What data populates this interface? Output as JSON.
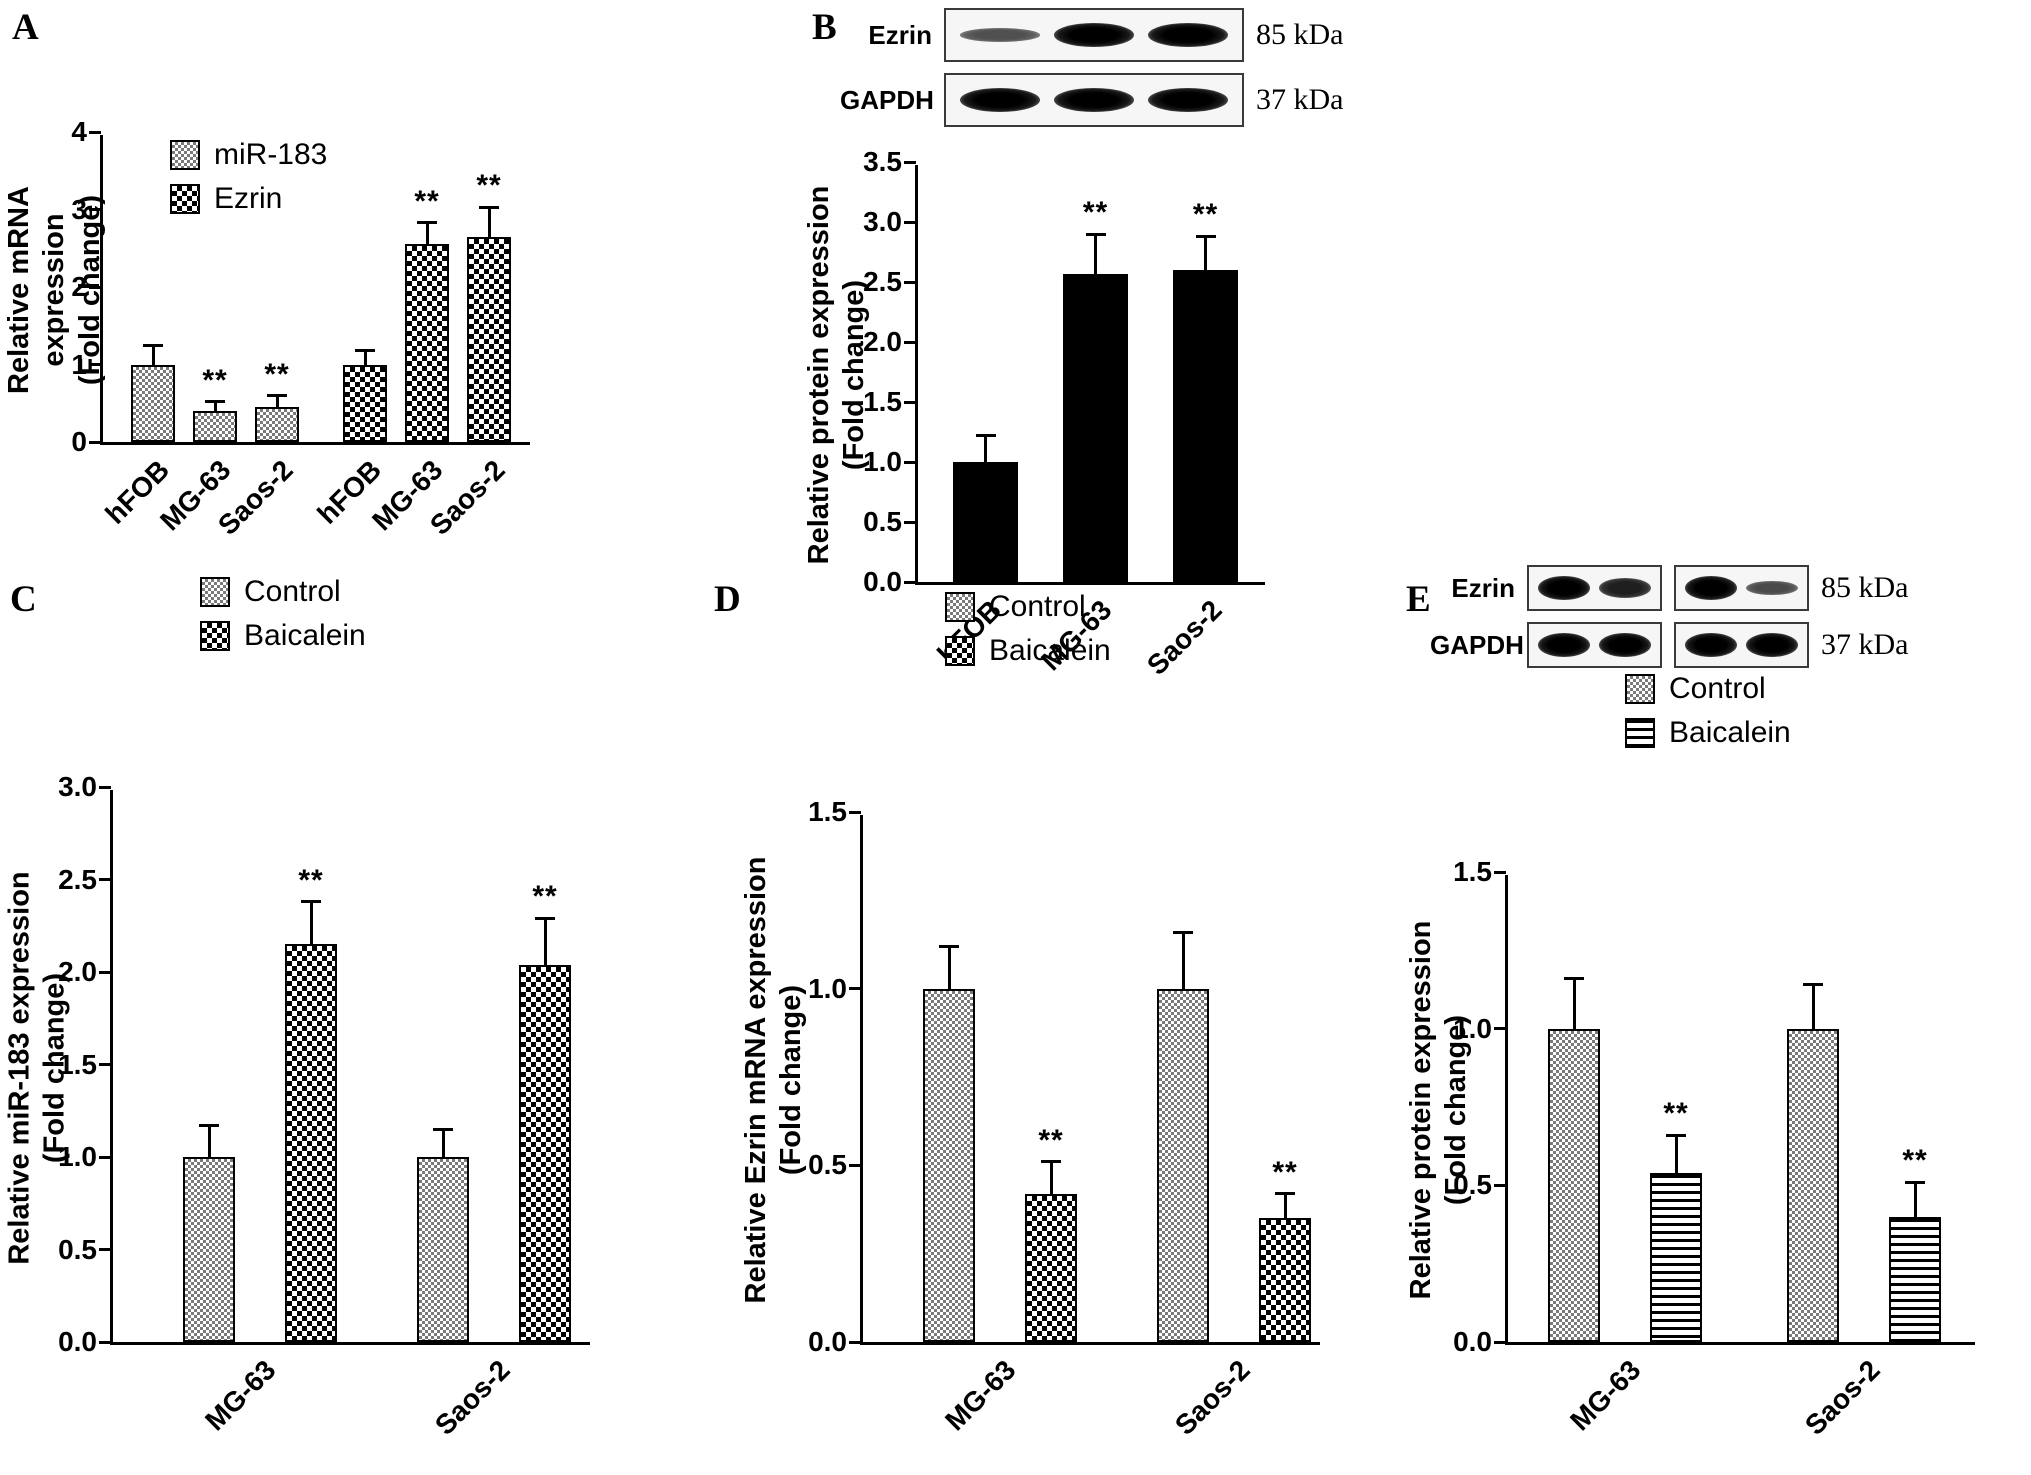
{
  "figure_bg": "#ffffff",
  "panels": {
    "a": {
      "label": "A"
    },
    "b": {
      "label": "B",
      "blot": {
        "rows": [
          {
            "label": "Ezrin",
            "kda": "85 kDa",
            "boxes": [
              [
                0.35,
                1,
                1
              ]
            ]
          },
          {
            "label": "GAPDH",
            "kda": "37 kDa",
            "boxes": [
              [
                1,
                1,
                1
              ]
            ]
          }
        ]
      }
    },
    "c": {
      "label": "C"
    },
    "d": {
      "label": "D"
    },
    "e": {
      "label": "E",
      "blot": {
        "rows": [
          {
            "label": "Ezrin",
            "kda": "85 kDa",
            "boxes": [
              [
                1,
                0.75
              ],
              [
                1,
                0.4
              ]
            ]
          },
          {
            "label": "GAPDH",
            "kda": "37 kDa",
            "boxes": [
              [
                1,
                1
              ],
              [
                1,
                1
              ]
            ]
          }
        ]
      }
    }
  },
  "chart_data": [
    {
      "id": "panel-a",
      "type": "bar",
      "ylabel": [
        "Relative mRNA expression",
        "(Fold change)"
      ],
      "xlabel": "",
      "ylim": [
        0,
        4
      ],
      "yticks": [
        0,
        1,
        2,
        3,
        4
      ],
      "ytick_labels": [
        "0",
        "1",
        "2",
        "3",
        "4"
      ],
      "legend": [
        {
          "label": "miR-183",
          "pattern": "fine"
        },
        {
          "label": "Ezrin",
          "pattern": "coarse"
        }
      ],
      "groups": [
        {
          "category": "hFOB",
          "bars": [
            {
              "series": "miR-183",
              "value": 1.0,
              "err": 0.25,
              "sig": "",
              "pattern": "fine"
            }
          ]
        },
        {
          "category": "MG-63",
          "bars": [
            {
              "series": "miR-183",
              "value": 0.4,
              "err": 0.12,
              "sig": "**",
              "pattern": "fine"
            }
          ]
        },
        {
          "category": "Saos-2",
          "bars": [
            {
              "series": "miR-183",
              "value": 0.45,
              "err": 0.15,
              "sig": "**",
              "pattern": "fine"
            }
          ]
        },
        {
          "category": "hFOB",
          "spacer": true,
          "bars": [
            {
              "series": "Ezrin",
              "value": 1.0,
              "err": 0.18,
              "sig": "",
              "pattern": "coarse"
            }
          ]
        },
        {
          "category": "MG-63",
          "bars": [
            {
              "series": "Ezrin",
              "value": 2.55,
              "err": 0.28,
              "sig": "**",
              "pattern": "coarse"
            }
          ]
        },
        {
          "category": "Saos-2",
          "bars": [
            {
              "series": "Ezrin",
              "value": 2.65,
              "err": 0.38,
              "sig": "**",
              "pattern": "coarse"
            }
          ]
        }
      ]
    },
    {
      "id": "panel-b",
      "type": "bar",
      "ylabel": [
        "Relative protein expression",
        "(Fold change)"
      ],
      "xlabel": "",
      "ylim": [
        0,
        3.5
      ],
      "yticks": [
        0,
        0.5,
        1,
        1.5,
        2,
        2.5,
        3,
        3.5
      ],
      "ytick_labels": [
        "0.0",
        "0.5",
        "1.0",
        "1.5",
        "2.0",
        "2.5",
        "3.0",
        "3.5"
      ],
      "groups": [
        {
          "category": "hFOB",
          "bars": [
            {
              "value": 1.0,
              "err": 0.22,
              "sig": "",
              "pattern": "solid"
            }
          ]
        },
        {
          "category": "MG-63",
          "bars": [
            {
              "value": 2.57,
              "err": 0.33,
              "sig": "**",
              "pattern": "solid"
            }
          ]
        },
        {
          "category": "Saos-2",
          "bars": [
            {
              "value": 2.6,
              "err": 0.28,
              "sig": "**",
              "pattern": "solid"
            }
          ]
        }
      ]
    },
    {
      "id": "panel-c",
      "type": "bar",
      "ylabel": [
        "Relative miR-183 expression",
        "(Fold change)"
      ],
      "xlabel": "",
      "ylim": [
        0,
        3
      ],
      "yticks": [
        0,
        0.5,
        1,
        1.5,
        2,
        2.5,
        3
      ],
      "ytick_labels": [
        "0.0",
        "0.5",
        "1.0",
        "1.5",
        "2.0",
        "2.5",
        "3.0"
      ],
      "legend": [
        {
          "label": "Control",
          "pattern": "fine"
        },
        {
          "label": "Baicalein",
          "pattern": "coarse"
        }
      ],
      "groups": [
        {
          "category": "MG-63",
          "bars": [
            {
              "series": "Control",
              "value": 1.0,
              "err": 0.17,
              "sig": "",
              "pattern": "fine"
            },
            {
              "series": "Baicalein",
              "value": 2.15,
              "err": 0.23,
              "sig": "**",
              "pattern": "coarse"
            }
          ]
        },
        {
          "category": "Saos-2",
          "bars": [
            {
              "series": "Control",
              "value": 1.0,
              "err": 0.15,
              "sig": "",
              "pattern": "fine"
            },
            {
              "series": "Baicalein",
              "value": 2.04,
              "err": 0.25,
              "sig": "**",
              "pattern": "coarse"
            }
          ]
        }
      ]
    },
    {
      "id": "panel-d",
      "type": "bar",
      "ylabel": [
        "Relative Ezrin mRNA expression",
        "(Fold change)"
      ],
      "xlabel": "",
      "ylim": [
        0,
        1.5
      ],
      "yticks": [
        0,
        0.5,
        1,
        1.5
      ],
      "ytick_labels": [
        "0.0",
        "0.5",
        "1.0",
        "1.5"
      ],
      "legend": [
        {
          "label": "Control",
          "pattern": "fine"
        },
        {
          "label": "Baicalein",
          "pattern": "coarse"
        }
      ],
      "groups": [
        {
          "category": "MG-63",
          "bars": [
            {
              "series": "Control",
              "value": 1.0,
              "err": 0.12,
              "sig": "",
              "pattern": "fine"
            },
            {
              "series": "Baicalein",
              "value": 0.42,
              "err": 0.09,
              "sig": "**",
              "pattern": "coarse"
            }
          ]
        },
        {
          "category": "Saos-2",
          "bars": [
            {
              "series": "Control",
              "value": 1.0,
              "err": 0.16,
              "sig": "",
              "pattern": "fine"
            },
            {
              "series": "Baicalein",
              "value": 0.35,
              "err": 0.07,
              "sig": "**",
              "pattern": "coarse"
            }
          ]
        }
      ]
    },
    {
      "id": "panel-e",
      "type": "bar",
      "ylabel": [
        "Relative protein expression",
        "(Fold change)"
      ],
      "xlabel": "",
      "ylim": [
        0,
        1.5
      ],
      "yticks": [
        0,
        0.5,
        1,
        1.5
      ],
      "ytick_labels": [
        "0.0",
        "0.5",
        "1.0",
        "1.5"
      ],
      "legend": [
        {
          "label": "Control",
          "pattern": "fine"
        },
        {
          "label": "Baicalein",
          "pattern": "hstripe"
        }
      ],
      "groups": [
        {
          "category": "MG-63",
          "bars": [
            {
              "series": "Control",
              "value": 1.0,
              "err": 0.16,
              "sig": "",
              "pattern": "fine"
            },
            {
              "series": "Baicalein",
              "value": 0.54,
              "err": 0.12,
              "sig": "**",
              "pattern": "hstripe"
            }
          ]
        },
        {
          "category": "Saos-2",
          "bars": [
            {
              "series": "Control",
              "value": 1.0,
              "err": 0.14,
              "sig": "",
              "pattern": "fine"
            },
            {
              "series": "Baicalein",
              "value": 0.4,
              "err": 0.11,
              "sig": "**",
              "pattern": "hstripe"
            }
          ]
        }
      ]
    }
  ]
}
